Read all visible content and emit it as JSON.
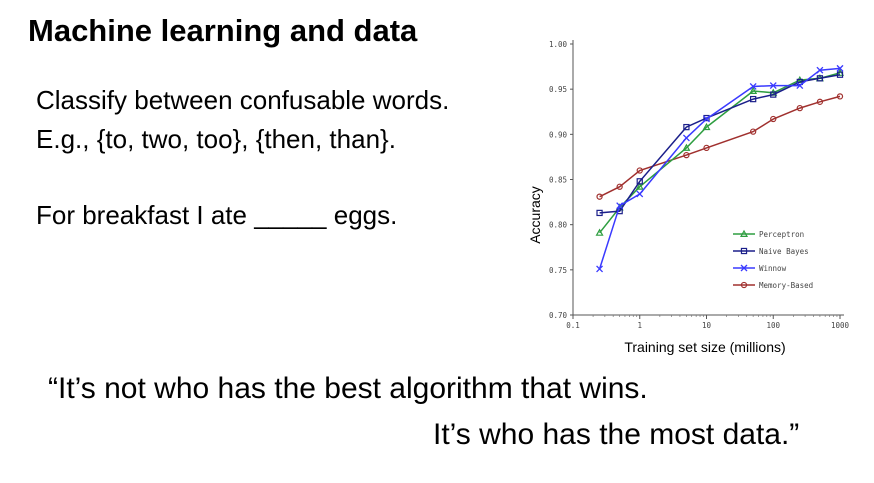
{
  "slide": {
    "title": "Machine learning and data",
    "line1": "Classify between confusable words.",
    "line2": "E.g., {to, two, too}, {then, than}.",
    "line3": "For breakfast I ate _____ eggs.",
    "quote_line1": "“It’s not who has the best algorithm that wins.",
    "quote_line2": "It’s who has the most data.”"
  },
  "chart_data": {
    "type": "line",
    "title": "",
    "xlabel": "Training set size (millions)",
    "ylabel": "Accuracy",
    "x_scale": "log",
    "xlim": [
      0.1,
      1000
    ],
    "ylim": [
      0.7,
      1.0
    ],
    "x_ticks": [
      0.1,
      1,
      10,
      100,
      1000
    ],
    "x_tick_labels": [
      "0.1",
      "1",
      "10",
      "100",
      "1000"
    ],
    "y_ticks": [
      0.7,
      0.75,
      0.8,
      0.85,
      0.9,
      0.95,
      1.0
    ],
    "y_tick_labels": [
      "0.70",
      "0.75",
      "0.80",
      "0.85",
      "0.90",
      "0.95",
      "1.00"
    ],
    "grid": false,
    "legend_position": "lower-right",
    "series": [
      {
        "name": "Perceptron",
        "color": "#2e9e40",
        "marker": "triangle",
        "x": [
          0.25,
          0.5,
          1,
          5,
          10,
          50,
          100,
          250,
          500,
          1000
        ],
        "y": [
          0.791,
          0.819,
          0.842,
          0.885,
          0.908,
          0.948,
          0.946,
          0.96,
          0.962,
          0.968
        ]
      },
      {
        "name": "Naive Bayes",
        "color": "#1b1f8a",
        "marker": "square",
        "x": [
          0.25,
          0.5,
          1,
          5,
          10,
          50,
          100,
          250,
          500,
          1000
        ],
        "y": [
          0.813,
          0.815,
          0.848,
          0.908,
          0.918,
          0.939,
          0.944,
          0.958,
          0.962,
          0.966
        ]
      },
      {
        "name": "Winnow",
        "color": "#3a3aff",
        "marker": "x",
        "x": [
          0.25,
          0.5,
          1,
          5,
          10,
          50,
          100,
          250,
          500,
          1000
        ],
        "y": [
          0.751,
          0.821,
          0.834,
          0.896,
          0.917,
          0.953,
          0.954,
          0.954,
          0.971,
          0.973
        ]
      },
      {
        "name": "Memory-Based",
        "color": "#a0302e",
        "marker": "circle",
        "x": [
          0.25,
          0.5,
          1,
          5,
          10,
          50,
          100,
          250,
          500,
          1000
        ],
        "y": [
          0.831,
          0.842,
          0.86,
          0.877,
          0.885,
          0.903,
          0.917,
          0.929,
          0.936,
          0.942
        ]
      }
    ]
  }
}
